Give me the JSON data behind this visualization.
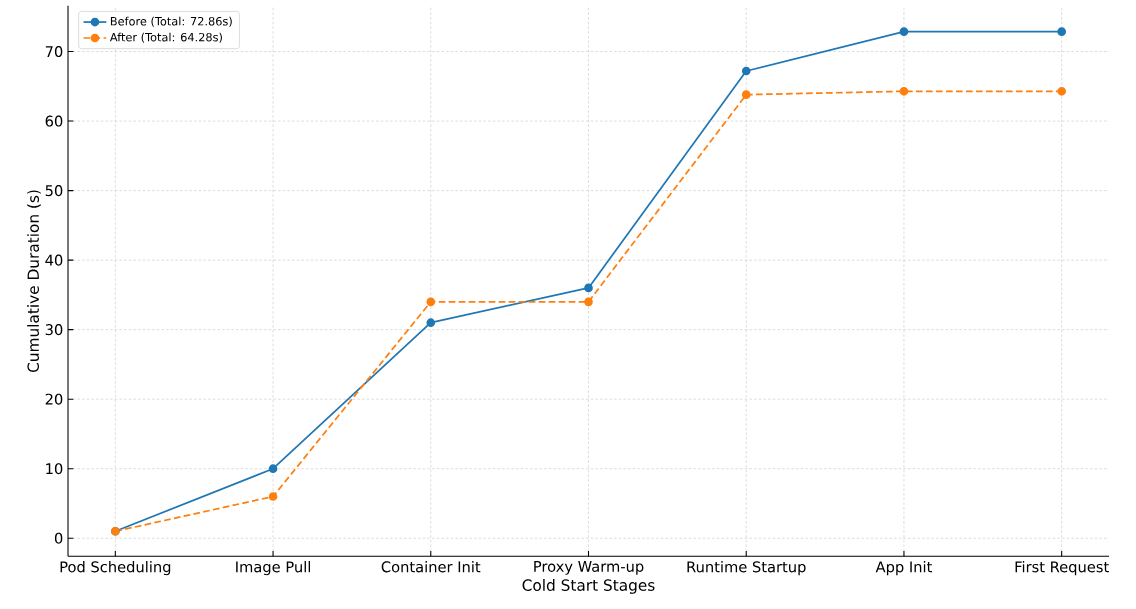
{
  "chart_data": {
    "type": "line",
    "xlabel": "Cold Start Stages",
    "ylabel": "Cumulative Duration (s)",
    "categories": [
      "Pod Scheduling",
      "Image Pull",
      "Container Init",
      "Proxy Warm-up",
      "Runtime Startup",
      "App Init",
      "First Request"
    ],
    "series": [
      {
        "name": "Before (Total: 72.86s)",
        "color": "#1f77b4",
        "line_style": "solid",
        "values": [
          1,
          10,
          31,
          36,
          67.2,
          72.86,
          72.86
        ]
      },
      {
        "name": "After (Total: 64.28s)",
        "color": "#ff7f0e",
        "line_style": "dashed",
        "values": [
          1,
          6,
          34,
          34,
          63.8,
          64.28,
          64.28
        ]
      }
    ],
    "ylim": [
      -2.6,
      76.6
    ],
    "yticks": [
      0,
      10,
      20,
      30,
      40,
      50,
      60,
      70
    ],
    "grid": true,
    "legend": "top left",
    "marker": "circle"
  }
}
